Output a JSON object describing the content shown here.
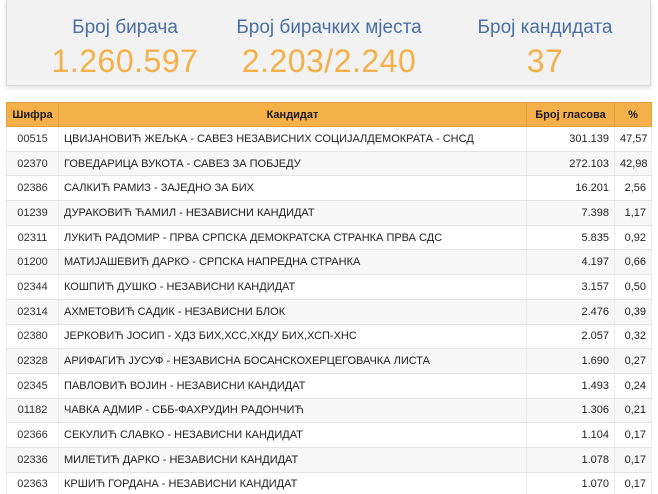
{
  "stats": {
    "voters": {
      "label": "Број бирача",
      "value": "1.260.597"
    },
    "polling_places": {
      "label": "Број бирачких мјеста",
      "value": "2.203/2.240"
    },
    "candidates": {
      "label": "Број кандидата",
      "value": "37"
    }
  },
  "table": {
    "headers": {
      "code": "Шифра",
      "candidate": "Кандидат",
      "votes": "Број гласова",
      "percent": "%"
    },
    "rows": [
      {
        "code": "00515",
        "candidate": "ЦВИЈАНОВИЋ ЖЕЉКА - САВЕЗ НЕЗАВИСНИХ СОЦИЈАЛДЕМОКРАТА - СНСД",
        "votes": "301.139",
        "percent": "47,57"
      },
      {
        "code": "02370",
        "candidate": "ГОВЕДАРИЦА ВУКОТА - САВЕЗ ЗА ПОБЈЕДУ",
        "votes": "272.103",
        "percent": "42,98"
      },
      {
        "code": "02386",
        "candidate": "САЛКИЋ РАМИЗ - ЗАЈЕДНО ЗА БИХ",
        "votes": "16.201",
        "percent": "2,56"
      },
      {
        "code": "01239",
        "candidate": "ДУРАКОВИЋ ЋАМИЛ - НЕЗАВИСНИ КАНДИДАТ",
        "votes": "7.398",
        "percent": "1,17"
      },
      {
        "code": "02311",
        "candidate": "ЛУКИЋ РАДОМИР - ПРВА СРПСКА ДЕМОКРАТСКА СТРАНКА ПРВА СДС",
        "votes": "5.835",
        "percent": "0,92"
      },
      {
        "code": "01200",
        "candidate": "МАТИЈАШЕВИЋ ДАРКО - СРПСКА НАПРЕДНА СТРАНКА",
        "votes": "4.197",
        "percent": "0,66"
      },
      {
        "code": "02344",
        "candidate": "КОШПИЋ ДУШКО - НЕЗАВИСНИ КАНДИДАТ",
        "votes": "3.157",
        "percent": "0,50"
      },
      {
        "code": "02314",
        "candidate": "АХМЕТОВИЋ САДИК - НЕЗАВИСНИ БЛОК",
        "votes": "2.476",
        "percent": "0,39"
      },
      {
        "code": "02380",
        "candidate": "ЈЕРКОВИЋ ЈОСИП - ХДЗ БИХ,ХСС,ХКДУ БИХ,ХСП-ХНС",
        "votes": "2.057",
        "percent": "0,32"
      },
      {
        "code": "02328",
        "candidate": "АРИФАГИЋ ЈУСУФ - НЕЗАВИСНА БОСАНСКОХЕРЦЕГОВАЧКА ЛИСТА",
        "votes": "1.690",
        "percent": "0,27"
      },
      {
        "code": "02345",
        "candidate": "ПАВЛОВИЋ ВОЈИН - НЕЗАВИСНИ КАНДИДАТ",
        "votes": "1.493",
        "percent": "0,24"
      },
      {
        "code": "01182",
        "candidate": "ЧАВКА АДМИР - СББ-ФАХРУДИН РАДОНЧИЋ",
        "votes": "1.306",
        "percent": "0,21"
      },
      {
        "code": "02366",
        "candidate": "СЕКУЛИЋ СЛАВКО - НЕЗАВИСНИ КАНДИДАТ",
        "votes": "1.104",
        "percent": "0,17"
      },
      {
        "code": "02336",
        "candidate": "МИЛЕТИЋ ДАРКО - НЕЗАВИСНИ КАНДИДАТ",
        "votes": "1.078",
        "percent": "0,17"
      },
      {
        "code": "02363",
        "candidate": "КРШИЋ ГОРДАНА - НЕЗАВИСНИ КАНДИДАТ",
        "votes": "1.070",
        "percent": "0,17"
      }
    ]
  }
}
